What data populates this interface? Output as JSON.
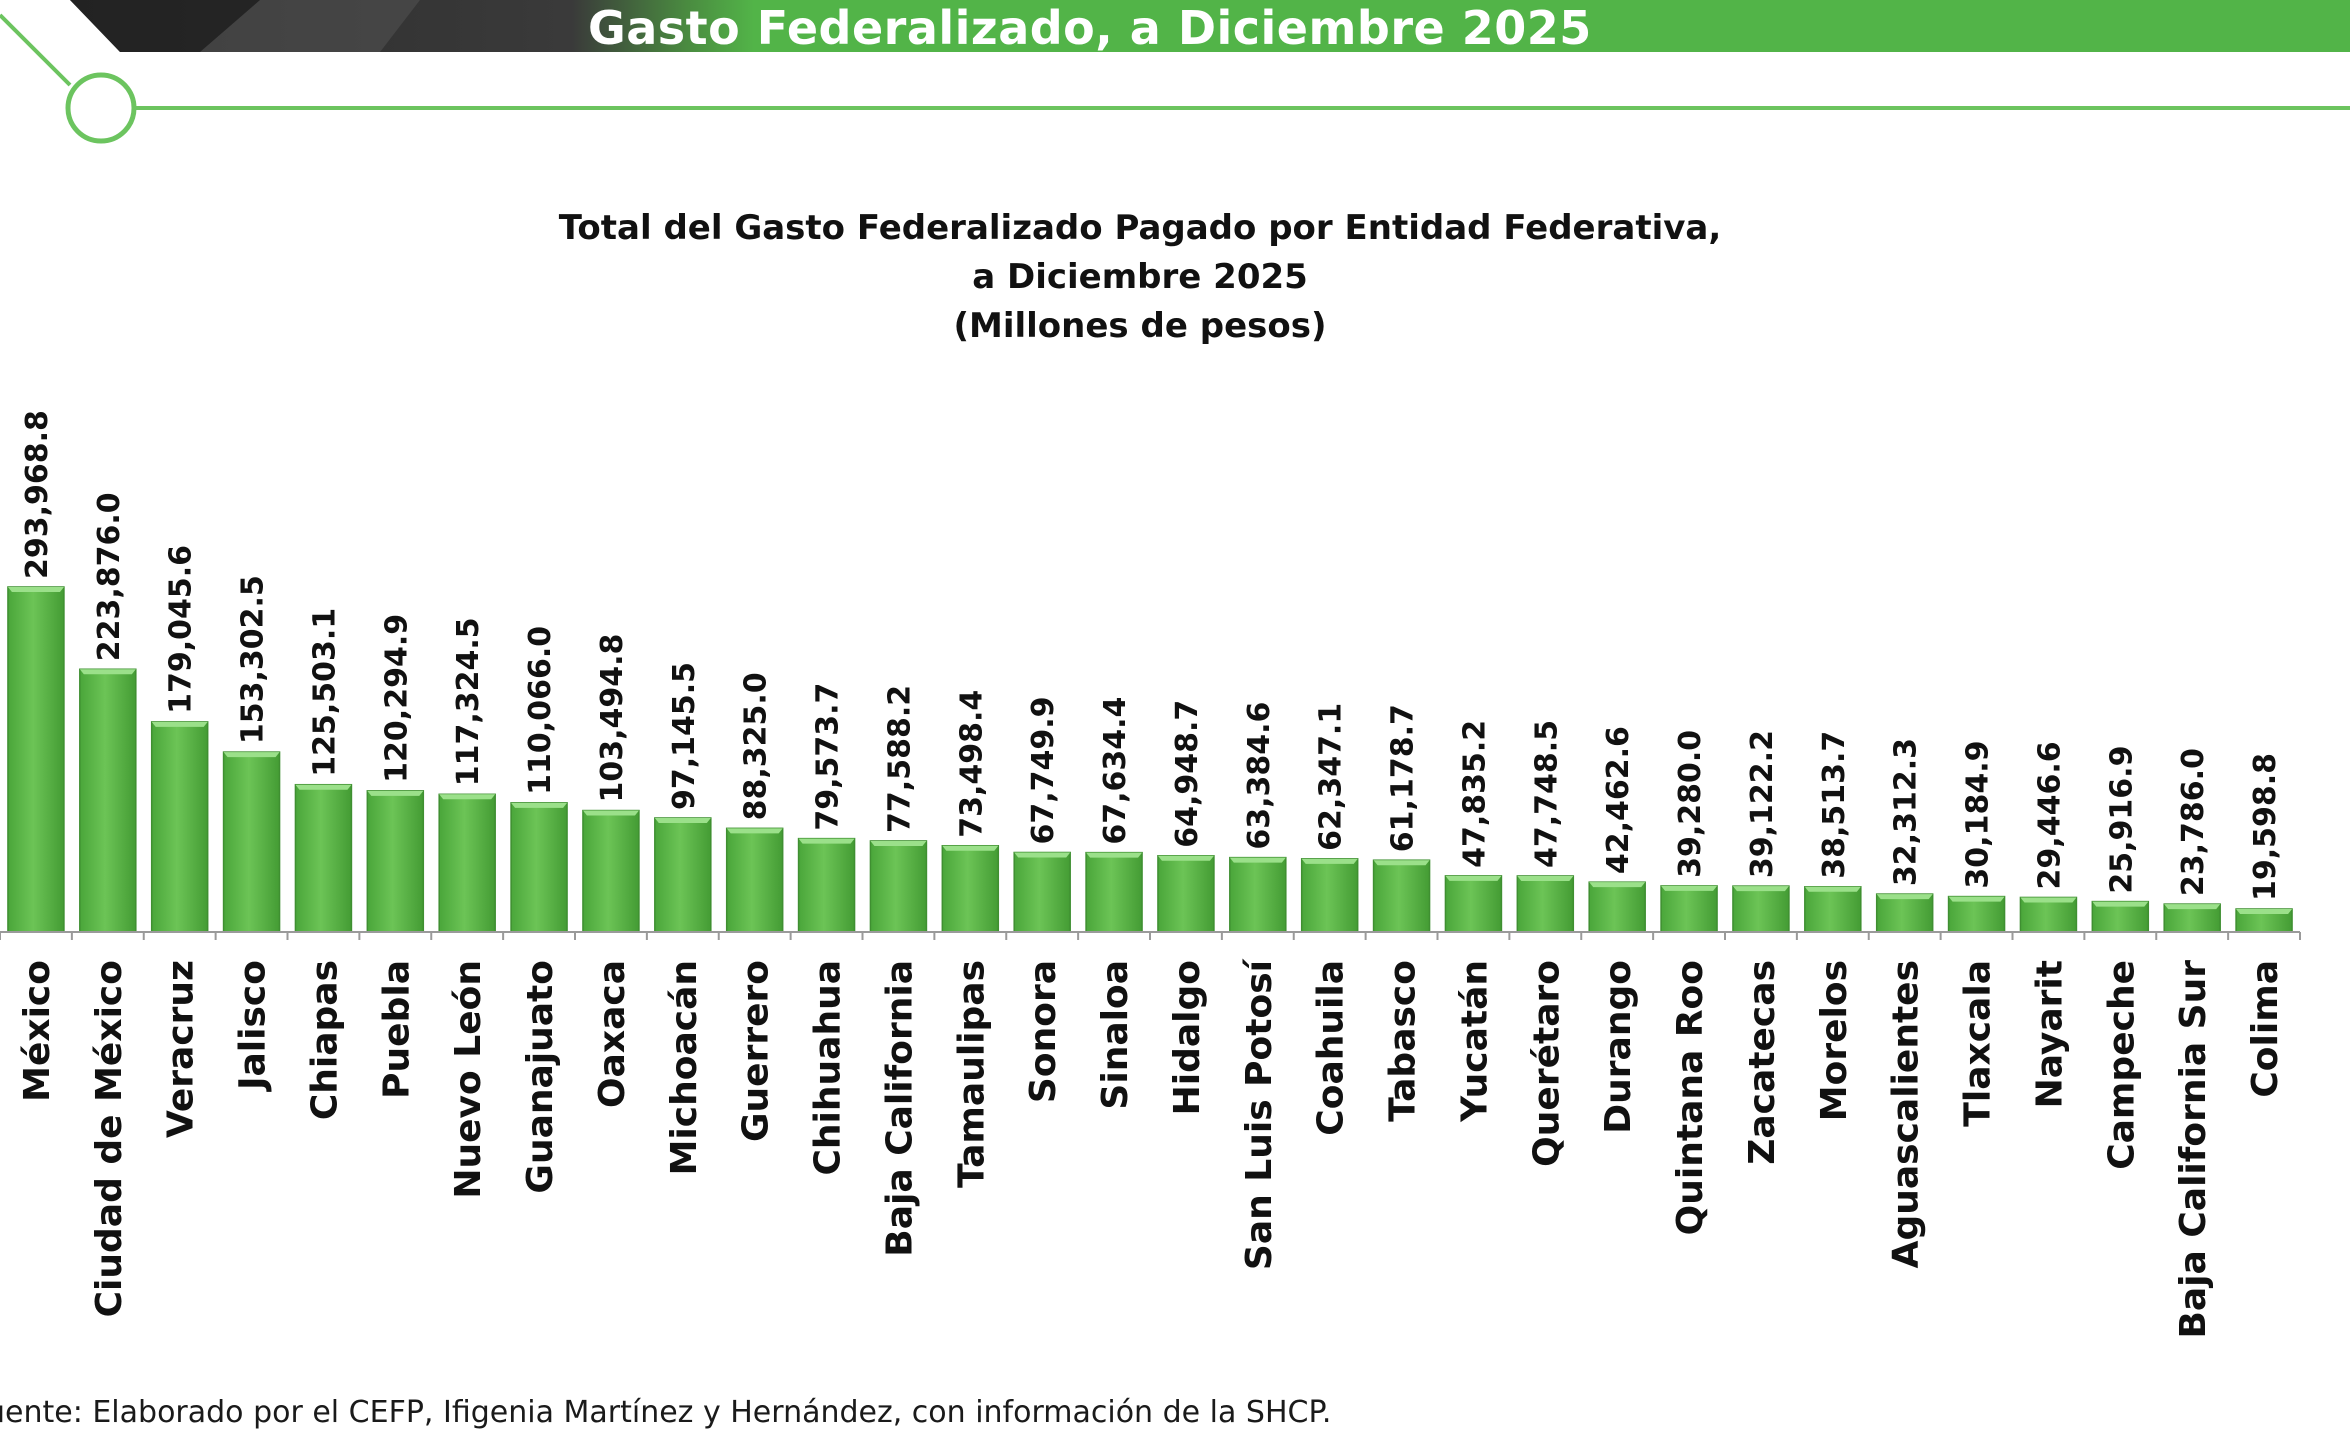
{
  "header": {
    "title": "Gasto Federalizado, a Diciembre 2025",
    "colors": {
      "green": "#52b448",
      "dark": "#2a2a2a",
      "line": "#6cc45f"
    }
  },
  "chart_data": {
    "type": "bar",
    "title_lines": [
      "Total del Gasto Federalizado Pagado por Entidad Federativa,",
      "a Diciembre 2025",
      "(Millones de pesos)"
    ],
    "categories": [
      "México",
      "Ciudad de México",
      "Veracruz",
      "Jalisco",
      "Chiapas",
      "Puebla",
      "Nuevo León",
      "Guanajuato",
      "Oaxaca",
      "Michoacán",
      "Guerrero",
      "Chihuahua",
      "Baja California",
      "Tamaulipas",
      "Sonora",
      "Sinaloa",
      "Hidalgo",
      "San Luis Potosí",
      "Coahuila",
      "Tabasco",
      "Yucatán",
      "Querétaro",
      "Durango",
      "Quintana Roo",
      "Zacatecas",
      "Morelos",
      "Aguascalientes",
      "Tlaxcala",
      "Nayarit",
      "Campeche",
      "Baja California Sur",
      "Colima"
    ],
    "values": [
      293968.8,
      223876.0,
      179045.6,
      153302.5,
      125503.1,
      120294.9,
      117324.5,
      110066.0,
      103494.8,
      97145.5,
      88325.0,
      79573.7,
      77588.2,
      73498.4,
      67749.9,
      67634.4,
      64948.7,
      63384.6,
      62347.1,
      61178.7,
      47835.2,
      47748.5,
      42462.6,
      39280.0,
      39122.2,
      38513.7,
      32312.3,
      30184.9,
      29446.6,
      25916.9,
      23786.0,
      19598.8
    ],
    "value_labels": [
      "293,968.8",
      "223,876.0",
      "179,045.6",
      "153,302.5",
      "125,503.1",
      "120,294.9",
      "117,324.5",
      "110,066.0",
      "103,494.8",
      "97,145.5",
      "88,325.0",
      "79,573.7",
      "77,588.2",
      "73,498.4",
      "67,749.9",
      "67,634.4",
      "64,948.7",
      "63,384.6",
      "62,347.1",
      "61,178.7",
      "47,835.2",
      "47,748.5",
      "42,462.6",
      "39,280.0",
      "39,122.2",
      "38,513.7",
      "32,312.3",
      "30,184.9",
      "29,446.6",
      "25,916.9",
      "23,786.0",
      "19,598.8"
    ],
    "ylim": [
      0,
      300000
    ],
    "bar_color": "#5cb845",
    "bar_dark_color": "#3f8f31",
    "grid": false,
    "legend": "none"
  },
  "footer": {
    "source": "uente: Elaborado por el CEFP, Ifigenia Martínez y Hernández, con información de la SHCP."
  }
}
